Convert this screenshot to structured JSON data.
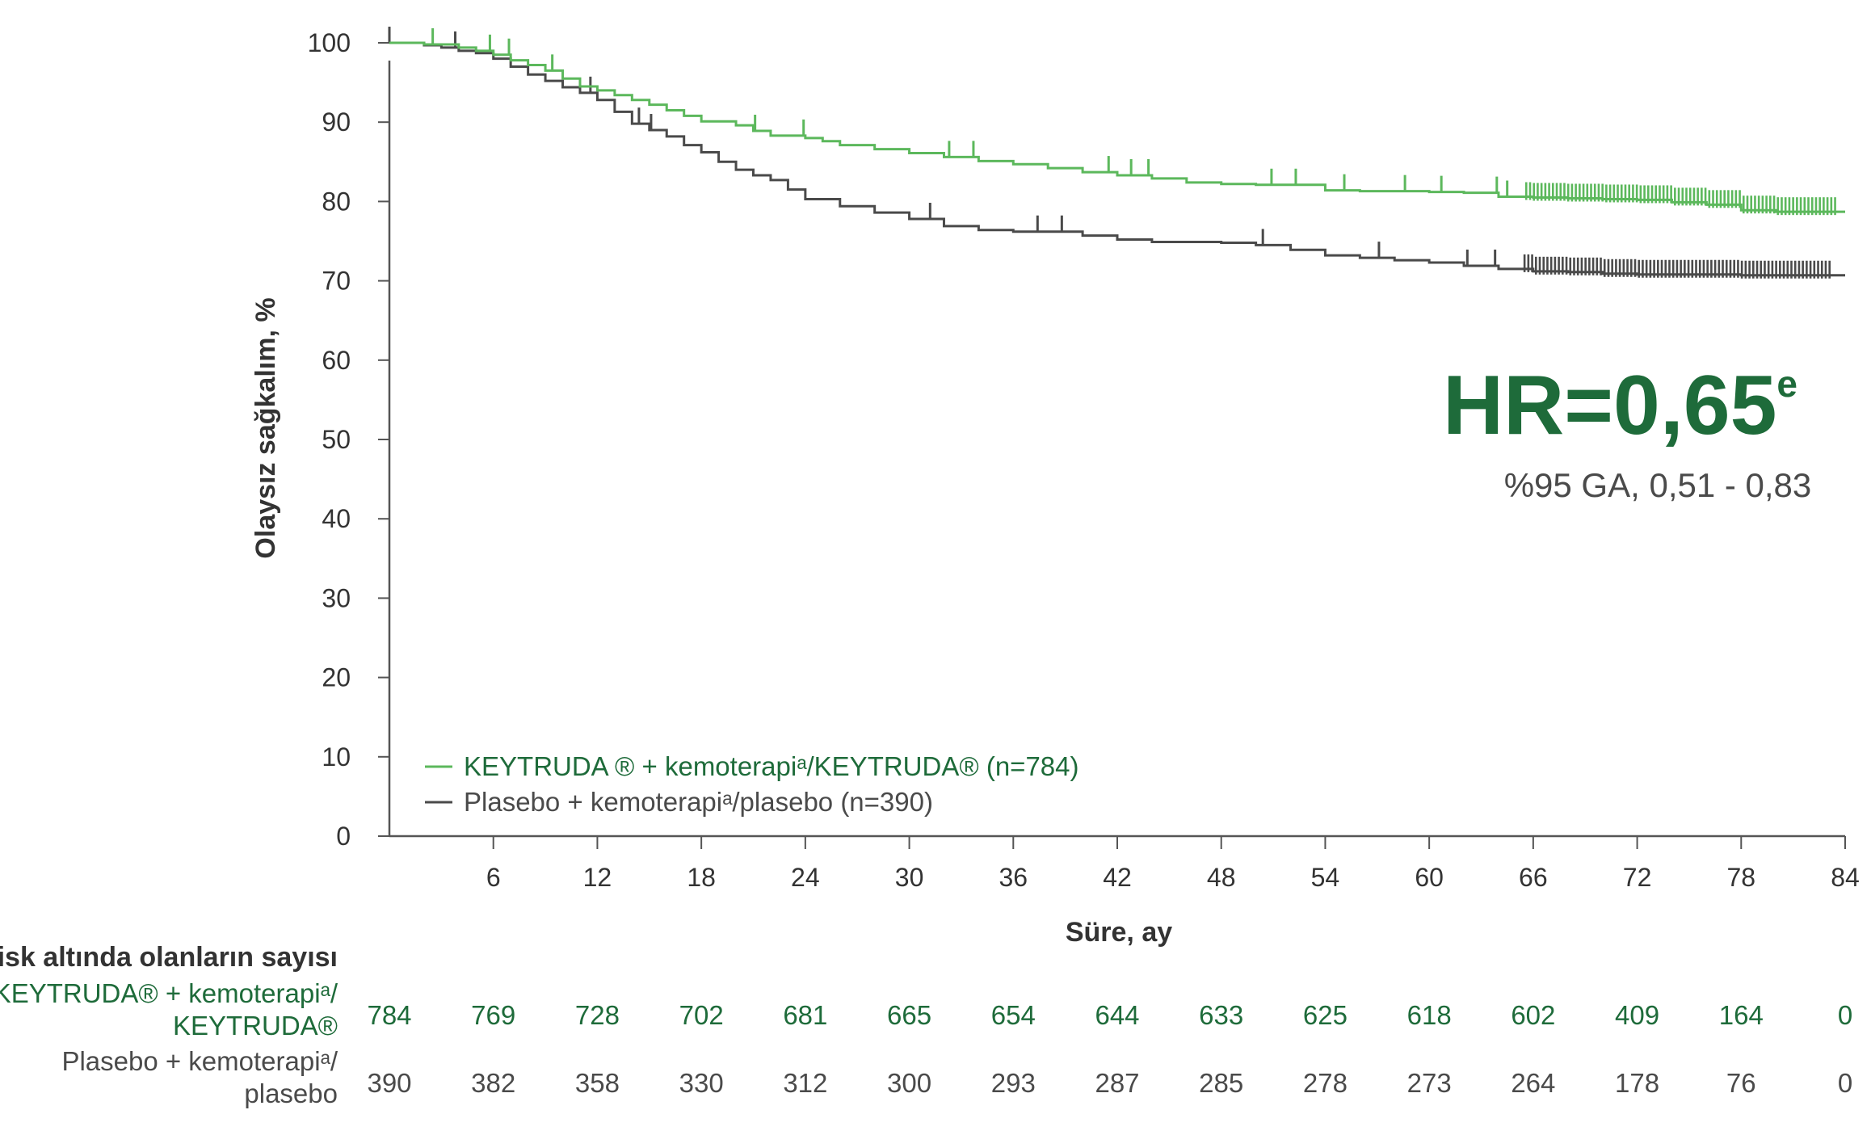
{
  "chart_data": {
    "type": "line",
    "subtype": "kaplan-meier",
    "ylabel": "Olaysız sağkalım, %",
    "xlabel": "Süre, ay",
    "ylim": [
      0,
      100
    ],
    "xlim": [
      0,
      84
    ],
    "yticks": [
      0,
      10,
      20,
      30,
      40,
      50,
      60,
      70,
      80,
      90,
      100
    ],
    "xticks": [
      6,
      12,
      18,
      24,
      30,
      36,
      42,
      48,
      54,
      60,
      66,
      72,
      78,
      84
    ],
    "grid": false,
    "legend_position": "bottom-left",
    "series": [
      {
        "name": "KEYTRUDA ® + kemoterapiᵃ/KEYTRUDA® (n=784)",
        "color": "#5cb85c",
        "x": [
          0,
          2,
          4,
          5,
          6,
          7,
          8,
          9,
          10,
          11,
          12,
          13,
          14,
          15,
          16,
          17,
          18,
          20,
          21,
          22,
          24,
          25,
          26,
          28,
          30,
          32,
          34,
          36,
          38,
          40,
          42,
          44,
          46,
          48,
          50,
          52,
          54,
          56,
          58,
          60,
          62,
          64,
          66,
          68,
          70,
          72,
          74,
          76,
          78,
          80,
          84
        ],
        "y": [
          100,
          99.8,
          99.4,
          99,
          98.5,
          97.8,
          97.2,
          96.5,
          95.5,
          94.5,
          94,
          93.4,
          92.8,
          92.2,
          91.5,
          90.8,
          90.1,
          89.6,
          88.9,
          88.3,
          88,
          87.6,
          87.1,
          86.6,
          86.1,
          85.6,
          85.1,
          84.7,
          84.2,
          83.7,
          83.3,
          82.9,
          82.4,
          82.2,
          82.1,
          82.1,
          81.4,
          81.3,
          81.3,
          81.2,
          81.1,
          80.6,
          80.5,
          80.4,
          80.3,
          80.2,
          79.9,
          79.6,
          78.9,
          78.7,
          78.7
        ],
        "censor_x": [
          2.5,
          5.8,
          6.9,
          9.4,
          21.1,
          23.9,
          32.3,
          33.7,
          41.5,
          42.8,
          43.8,
          50.9,
          52.3,
          55.1,
          58.6,
          60.7,
          63.9,
          64.5
        ]
      },
      {
        "name": "Plasebo + kemoterapiᵃ/plasebo (n=390)",
        "color": "#4a4a4a",
        "x": [
          0,
          2,
          3,
          4,
          5,
          6,
          7,
          8,
          9,
          10,
          11,
          12,
          13,
          14,
          15,
          16,
          17,
          18,
          19,
          20,
          21,
          22,
          23,
          24,
          26,
          28,
          30,
          32,
          34,
          36,
          38,
          40,
          42,
          44,
          46,
          48,
          50,
          52,
          54,
          56,
          58,
          60,
          62,
          64,
          66,
          68,
          70,
          72,
          74,
          76,
          78,
          80,
          84
        ],
        "y": [
          100,
          99.7,
          99.4,
          99,
          98.7,
          98,
          97,
          96,
          95.2,
          94.4,
          93.7,
          92.8,
          91.3,
          89.8,
          89,
          88.2,
          87.1,
          86.2,
          85,
          84,
          83.3,
          82.7,
          81.5,
          80.3,
          79.4,
          78.6,
          77.8,
          76.9,
          76.4,
          76.2,
          76.2,
          75.7,
          75.2,
          74.9,
          74.9,
          74.8,
          74.5,
          73.9,
          73.2,
          72.9,
          72.6,
          72.3,
          71.9,
          71.5,
          71.2,
          71.1,
          70.9,
          70.8,
          70.8,
          70.8,
          70.7,
          70.7,
          70.7
        ],
        "censor_x": [
          0,
          3.8,
          11.6,
          14.4,
          15.1,
          31.2,
          37.4,
          38.8,
          50.4,
          57.1,
          62.2,
          63.8
        ]
      }
    ],
    "censor_dense": [
      {
        "series": 0,
        "from": 65.6,
        "to": 83.5
      },
      {
        "series": 1,
        "from": 65.5,
        "to": 83.1
      }
    ],
    "annotation": {
      "hr_main": "HR=0,65",
      "hr_sup": "e",
      "ci": "%95 GA, 0,51 - 0,83"
    },
    "risk_table": {
      "title": "Risk altında olanların sayısı",
      "rows": [
        {
          "label_line1": "KEYTRUDA® + kemoterapiᵃ/",
          "label_line2": "KEYTRUDA®",
          "color": "#1e6b3a",
          "values": [
            "784",
            "769",
            "728",
            "702",
            "681",
            "665",
            "654",
            "644",
            "633",
            "625",
            "618",
            "602",
            "409",
            "164",
            "0"
          ]
        },
        {
          "label_line1": "Plasebo + kemoterapiᵃ/",
          "label_line2": "plasebo",
          "color": "#4a4a4a",
          "values": [
            "390",
            "382",
            "358",
            "330",
            "312",
            "300",
            "293",
            "287",
            "285",
            "278",
            "273",
            "264",
            "178",
            "76",
            "0"
          ]
        }
      ]
    }
  }
}
